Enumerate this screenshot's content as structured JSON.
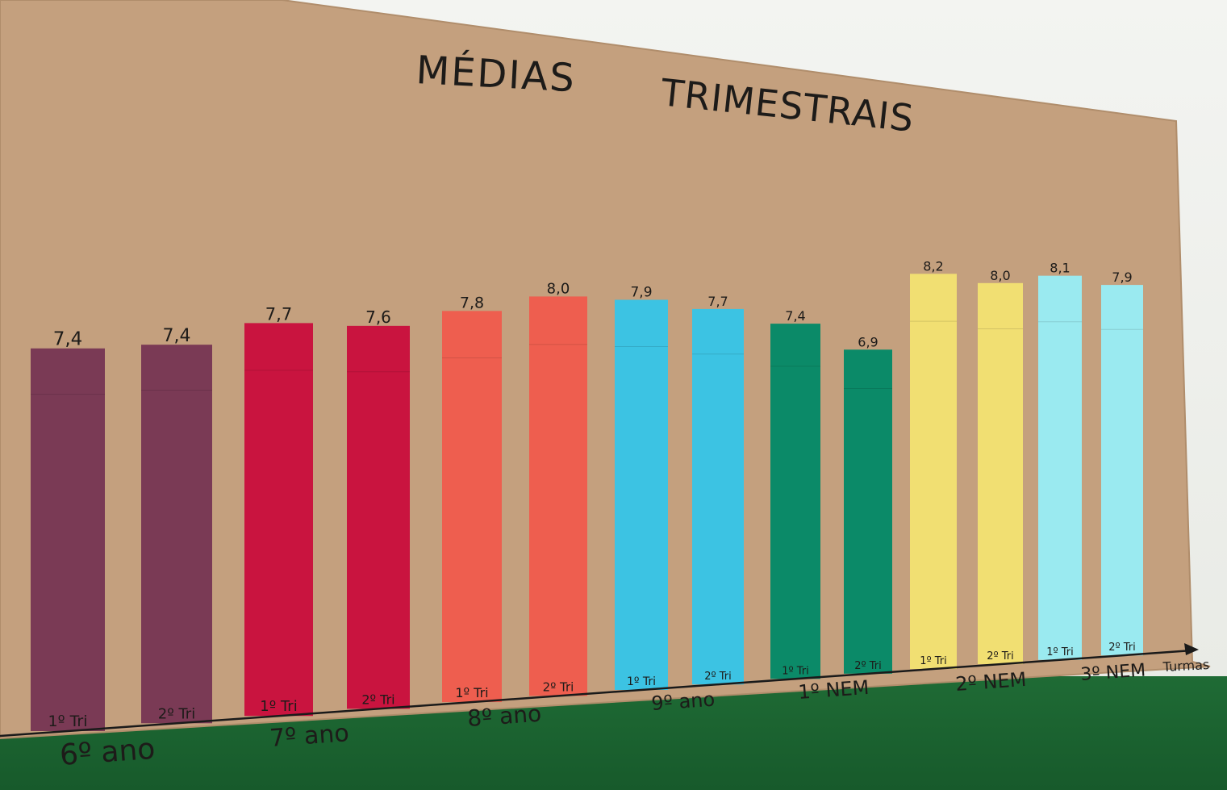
{
  "title_part1": "MÉDIAS",
  "title_part2": "TRIMESTRAIS",
  "x_axis_label": "Turmas",
  "colors": {
    "paper": "#c4a07e",
    "wall_green": "#1d6a33",
    "purple": "#7a3a55",
    "crimson": "#c9143f",
    "coral": "#ee5e4f",
    "sky": "#3cc3e3",
    "teal": "#0b8a68",
    "yellow": "#f1df72",
    "aqua": "#9aeaf0"
  },
  "chart_data": {
    "type": "bar",
    "title": "MÉDIAS TRIMESTRAIS",
    "xlabel": "Turmas",
    "ylabel": "",
    "groups": [
      "6º ano",
      "7º ano",
      "8º ano",
      "9º ano",
      "1º NEM",
      "2º NEM",
      "3º NEM"
    ],
    "series": [
      {
        "name": "1º Tri",
        "values": [
          7.4,
          7.7,
          7.8,
          7.9,
          7.4,
          8.2,
          8.1
        ]
      },
      {
        "name": "2º Tri",
        "values": [
          7.4,
          7.6,
          8.0,
          7.7,
          6.9,
          8.0,
          7.9
        ]
      }
    ],
    "value_labels": [
      [
        "7,4",
        "7,4"
      ],
      [
        "7,7",
        "7,6"
      ],
      [
        "7,8",
        "8,0"
      ],
      [
        "7,9",
        "7,7"
      ],
      [
        "7,4",
        "6,9"
      ],
      [
        "8,2",
        "8,0"
      ],
      [
        "8,1",
        "7,9"
      ]
    ],
    "bar_labels": [
      "1º Tri",
      "2º Tri"
    ],
    "group_colors": [
      "#7a3a55",
      "#c9143f",
      "#ee5e4f",
      "#3cc3e3",
      "#0b8a68",
      "#f1df72",
      "#9aeaf0"
    ],
    "ylim": [
      0,
      8.5
    ],
    "grid": false,
    "legend": "none"
  }
}
